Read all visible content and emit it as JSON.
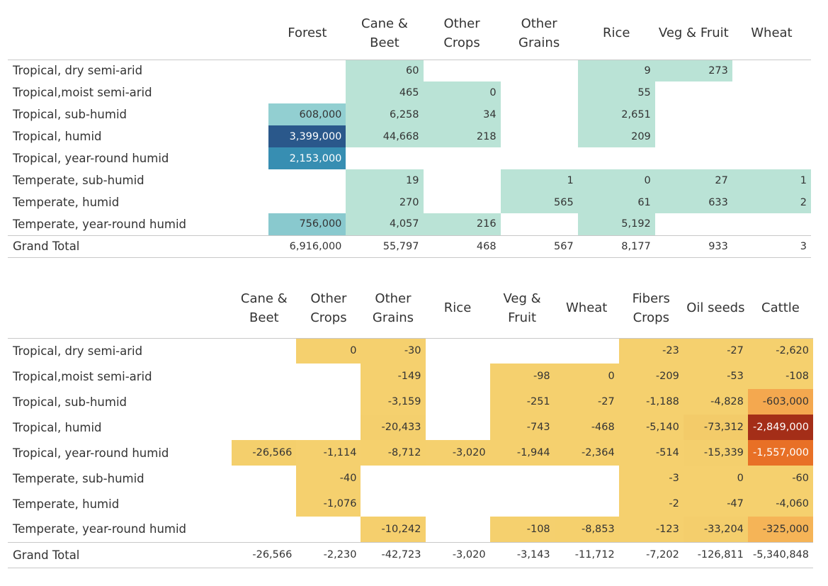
{
  "chart_data": [
    {
      "type": "heatmap",
      "palette": "blue-green",
      "max_value": 3399000,
      "columns": [
        "Forest",
        "Cane &\nBeet",
        "Other\nCrops",
        "Other\nGrains",
        "Rice",
        "Veg & Fruit",
        "Wheat"
      ],
      "rows": [
        {
          "label": "Tropical, dry semi-arid",
          "values": [
            null,
            60,
            null,
            null,
            9,
            273,
            null
          ]
        },
        {
          "label": "Tropical,moist semi-arid",
          "values": [
            null,
            465,
            0,
            null,
            55,
            null,
            null
          ]
        },
        {
          "label": "Tropical, sub-humid",
          "values": [
            608000,
            6258,
            34,
            null,
            2651,
            null,
            null
          ]
        },
        {
          "label": "Tropical, humid",
          "values": [
            3399000,
            44668,
            218,
            null,
            209,
            null,
            null
          ]
        },
        {
          "label": "Tropical, year-round humid",
          "values": [
            2153000,
            null,
            null,
            null,
            null,
            null,
            null
          ]
        },
        {
          "label": "Temperate, sub-humid",
          "values": [
            null,
            19,
            null,
            1,
            0,
            27,
            1
          ]
        },
        {
          "label": "Temperate, humid",
          "values": [
            null,
            270,
            null,
            565,
            61,
            633,
            2
          ]
        },
        {
          "label": "Temperate, year-round humid",
          "values": [
            756000,
            4057,
            216,
            null,
            5192,
            null,
            null
          ]
        }
      ],
      "total_label": "Grand Total",
      "totals": [
        6916000,
        55797,
        468,
        567,
        8177,
        933,
        3
      ]
    },
    {
      "type": "heatmap",
      "palette": "yellow-orange-red",
      "max_value": 2849000,
      "columns": [
        "Cane &\nBeet",
        "Other\nCrops",
        "Other\nGrains",
        "Rice",
        "Veg &\nFruit",
        "Wheat",
        "Fibers\nCrops",
        "Oil seeds",
        "Cattle"
      ],
      "rows": [
        {
          "label": "Tropical, dry semi-arid",
          "values": [
            null,
            0,
            -30,
            null,
            null,
            null,
            -23,
            -27,
            -2620
          ]
        },
        {
          "label": "Tropical,moist semi-arid",
          "values": [
            null,
            null,
            -149,
            null,
            -98,
            0,
            -209,
            -53,
            -108
          ]
        },
        {
          "label": "Tropical, sub-humid",
          "values": [
            null,
            null,
            -3159,
            null,
            -251,
            -27,
            -1188,
            -4828,
            -603000
          ]
        },
        {
          "label": "Tropical, humid",
          "values": [
            null,
            null,
            -20433,
            null,
            -743,
            -468,
            -5140,
            -73312,
            -2849000
          ]
        },
        {
          "label": "Tropical, year-round humid",
          "values": [
            -26566,
            -1114,
            -8712,
            -3020,
            -1944,
            -2364,
            -514,
            -15339,
            -1557000
          ]
        },
        {
          "label": "Temperate, sub-humid",
          "values": [
            null,
            -40,
            null,
            null,
            null,
            null,
            -3,
            0,
            -60
          ]
        },
        {
          "label": "Temperate, humid",
          "values": [
            null,
            -1076,
            null,
            null,
            null,
            null,
            -2,
            -47,
            -4060
          ]
        },
        {
          "label": "Temperate, year-round humid",
          "values": [
            null,
            null,
            -10242,
            null,
            -108,
            -8853,
            -123,
            -33204,
            -325000
          ]
        }
      ],
      "total_label": "Grand Total",
      "totals": [
        -26566,
        -2230,
        -42723,
        -3020,
        -3143,
        -11712,
        -7202,
        -126811,
        -5340848
      ]
    }
  ]
}
